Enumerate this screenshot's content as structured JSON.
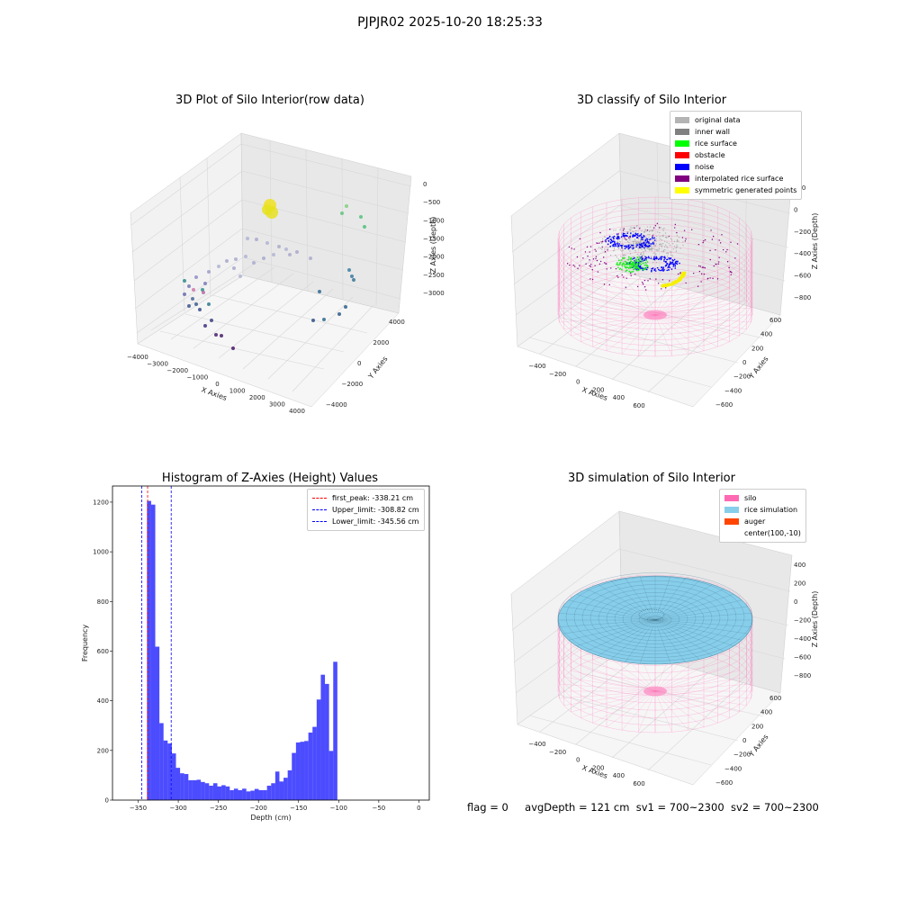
{
  "figure_title": "PJPJR02 2025-10-20 18:25:33",
  "footer": {
    "flag": "flag = 0",
    "avg": "avgDepth = 121 cm",
    "sv1": "sv1 = 700~2300",
    "sv2": "sv2 = 700~2300"
  },
  "panels": {
    "raw": {
      "title": "3D Plot of Silo Interior(row data)",
      "xlabel": "X Axies",
      "ylabel": "Y Axies",
      "zlabel": "Z Axies (Depth)",
      "xticks": [
        "-4000",
        "-3000",
        "-2000",
        "-1000",
        "0",
        "1000",
        "2000",
        "3000",
        "4000"
      ],
      "yticks": [
        "-4000",
        "-2000",
        "0",
        "2000",
        "4000"
      ],
      "zticks": [
        "0",
        "-500",
        "-1000",
        "-1500",
        "-2000",
        "-2500",
        "-3000"
      ]
    },
    "classify": {
      "title": "3D classify of Silo Interior",
      "xlabel": "X Axies",
      "ylabel": "Y Axies",
      "zlabel": "Z Axies (Depth)",
      "xticks": [
        "-400",
        "-200",
        "0",
        "200",
        "400",
        "600"
      ],
      "yticks": [
        "-600",
        "-400",
        "-200",
        "0",
        "200",
        "400",
        "600"
      ],
      "zticks": [
        "200",
        "0",
        "-200",
        "-400",
        "-600",
        "-800"
      ],
      "legend": [
        {
          "label": "original data",
          "color": "#b4b4b4"
        },
        {
          "label": "inner wall",
          "color": "#808080"
        },
        {
          "label": "rice surface",
          "color": "#00ff00"
        },
        {
          "label": "obstacle",
          "color": "#ff0000"
        },
        {
          "label": "noise",
          "color": "#0000ff"
        },
        {
          "label": "interpolated rice surface",
          "color": "#800080"
        },
        {
          "label": "symmetric generated points",
          "color": "#ffff00"
        }
      ]
    },
    "simulation": {
      "title": "3D simulation of Silo Interior",
      "xlabel": "X Axies",
      "ylabel": "Y Axies",
      "zlabel": "Z Axies (Depth)",
      "xticks": [
        "-400",
        "-200",
        "0",
        "200",
        "400",
        "600"
      ],
      "yticks": [
        "-600",
        "-400",
        "-200",
        "0",
        "200",
        "400",
        "600"
      ],
      "zticks": [
        "400",
        "200",
        "0",
        "-200",
        "-400",
        "-600",
        "-800"
      ],
      "legend": [
        {
          "label": "silo",
          "color": "#ff69b4"
        },
        {
          "label": "rice simulation",
          "color": "#87ceeb"
        },
        {
          "label": "auger",
          "color": "#ff4500"
        },
        {
          "label": "center(100,-10)",
          "color": ""
        }
      ]
    }
  },
  "chart_data": {
    "type": "bar",
    "title": "Histogram of Z-Axies (Height) Values",
    "xlabel": "Depth (cm)",
    "ylabel": "Frequency",
    "xlim": [
      -382,
      13
    ],
    "ylim": [
      0,
      1265
    ],
    "xticks": [
      -350,
      -300,
      -250,
      -200,
      -150,
      -100,
      -50,
      0
    ],
    "yticks": [
      0,
      200,
      400,
      600,
      800,
      1000,
      1200
    ],
    "bar_color": "#0000ff",
    "bin_width": 5.16,
    "bin_start": -339,
    "values": [
      1205,
      1190,
      618,
      310,
      240,
      228,
      188,
      130,
      108,
      105,
      80,
      80,
      82,
      73,
      68,
      58,
      68,
      55,
      60,
      55,
      40,
      46,
      40,
      46,
      35,
      38,
      45,
      40,
      40,
      58,
      68,
      115,
      75,
      90,
      120,
      190,
      232,
      235,
      238,
      272,
      295,
      405,
      505,
      468,
      198,
      557
    ],
    "lines": [
      {
        "label": "first_peak: -338.21 cm",
        "x": -338.21,
        "color": "#ff0000"
      },
      {
        "label": "Upper_limit: -308.82 cm",
        "x": -308.82,
        "color": "#0000ff"
      },
      {
        "label": "Lower_limit: -345.56 cm",
        "x": -345.56,
        "color": "#0000ff"
      }
    ]
  }
}
